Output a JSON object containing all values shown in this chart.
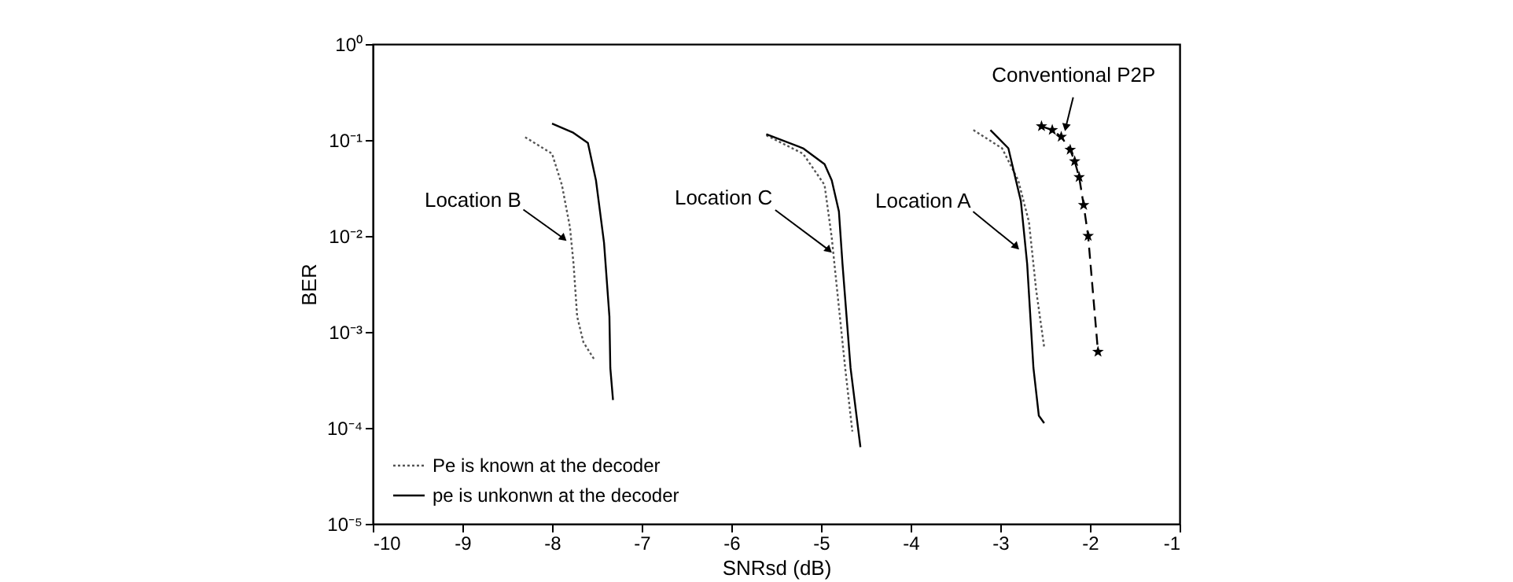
{
  "chart_data": {
    "type": "line",
    "xlabel": "SNRsd (dB)",
    "ylabel": "BER",
    "xlim": [
      -10,
      -1
    ],
    "xticks": [
      -10,
      -9,
      -8,
      -7,
      -6,
      -5,
      -4,
      -3,
      -2,
      -1
    ],
    "ylim": [
      1e-05,
      1
    ],
    "yticks": [
      {
        "value": 1e-05,
        "label": "10⁻⁵"
      },
      {
        "value": 0.0001,
        "label": "10⁻⁴"
      },
      {
        "value": 0.001,
        "label": "10⁻³"
      },
      {
        "value": 0.01,
        "label": "10⁻²"
      },
      {
        "value": 0.1,
        "label": "10⁻¹"
      },
      {
        "value": 1,
        "label": "10⁰"
      }
    ],
    "log": "y",
    "grid": false,
    "legend": "bottom left",
    "series": [
      {
        "name": "Pe is known at the decoder",
        "color": "#555555",
        "line_style": "dotted",
        "marker": "none",
        "x": [
          -8.3,
          -8.0,
          -7.89,
          -7.8,
          -7.76,
          -7.72,
          -7.65,
          -7.52
        ],
        "values": [
          0.107,
          0.072,
          0.034,
          0.0123,
          0.0051,
          0.00145,
          0.00078,
          0.0005
        ]
      },
      {
        "name": "pe is unkonwn at the decoder",
        "color": "#000000",
        "line_style": "solid",
        "marker": "none",
        "x": [
          -8.0,
          -7.77,
          -7.6,
          -7.51,
          -7.42,
          -7.36,
          -7.35,
          -7.32
        ],
        "values": [
          0.148,
          0.12,
          0.093,
          0.038,
          0.0085,
          0.00145,
          0.00042,
          0.000195
        ]
      },
      {
        "color": "#555555",
        "line_style": "dotted",
        "marker": "none",
        "x": [
          -5.61,
          -5.2,
          -4.96,
          -4.88,
          -4.82,
          -4.73,
          -4.65
        ],
        "values": [
          0.112,
          0.072,
          0.034,
          0.0096,
          0.00274,
          0.00042,
          9.15e-05
        ]
      },
      {
        "color": "#000000",
        "line_style": "solid",
        "marker": "none",
        "x": [
          -5.61,
          -5.2,
          -4.96,
          -4.88,
          -4.8,
          -4.76,
          -4.67,
          -4.56
        ],
        "values": [
          0.115,
          0.082,
          0.056,
          0.038,
          0.018,
          0.0051,
          0.00042,
          6.3e-05
        ]
      },
      {
        "color": "#555555",
        "line_style": "dotted",
        "marker": "none",
        "x": [
          -3.3,
          -2.98,
          -2.8,
          -2.68,
          -2.6,
          -2.51
        ],
        "values": [
          0.127,
          0.082,
          0.038,
          0.014,
          0.00274,
          0.00069
        ]
      },
      {
        "color": "#000000",
        "line_style": "solid",
        "marker": "none",
        "x": [
          -3.11,
          -2.91,
          -2.77,
          -2.7,
          -2.63,
          -2.57,
          -2.51
        ],
        "values": [
          0.127,
          0.082,
          0.023,
          0.0051,
          0.00042,
          0.000134,
          0.000112
        ]
      },
      {
        "color": "#000000",
        "line_style": "dashed",
        "marker": "star",
        "x": [
          -2.54,
          -2.42,
          -2.32,
          -2.22,
          -2.17,
          -2.12,
          -2.07,
          -2.02,
          -1.91
        ],
        "values": [
          0.139,
          0.127,
          0.108,
          0.079,
          0.06,
          0.041,
          0.021,
          0.01,
          0.00062
        ]
      }
    ],
    "annotations": [
      {
        "text": "Location B",
        "x": -7.87,
        "y": 0.0094
      },
      {
        "text": "Location C",
        "x": -4.91,
        "y": 0.0071
      },
      {
        "text": "Location A",
        "x": -2.82,
        "y": 0.0077
      },
      {
        "text": "Conventional P2P",
        "x": -2.27,
        "y": 0.135
      }
    ]
  }
}
